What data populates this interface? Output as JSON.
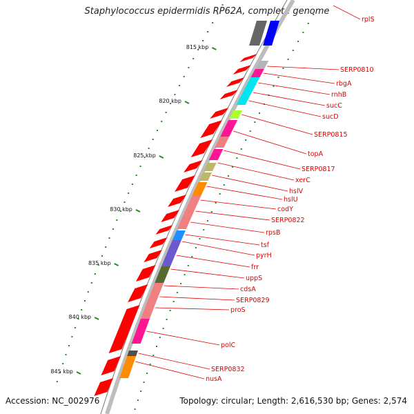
{
  "title": "Staphylococcus epidermidis RP62A, complete genome",
  "accession": "Accession: NC_002976",
  "topology": "Topology: circular; Length: 2,616,530 bp; Genes: 2,574",
  "ticks": [
    "815 kbp",
    "820 kbp",
    "825 kbp",
    "830 kbp",
    "835 kbp",
    "840 kbp",
    "845 kbp"
  ],
  "genes": [
    {
      "label": "rplS",
      "color": "#c0c0c0"
    },
    {
      "label": "SERP0810",
      "color": "#b4b4b4"
    },
    {
      "label": "rbgA",
      "color": "#ff1493"
    },
    {
      "label": "rnhB",
      "color": "#00e5ee"
    },
    {
      "label": "sucC",
      "color": "#00e5ee"
    },
    {
      "label": "sucD",
      "color": "#00e5ee"
    },
    {
      "label": "SERP0815",
      "color": "#adff2f"
    },
    {
      "label": "topA",
      "color": "#ff1493"
    },
    {
      "label": "SERP0817",
      "color": "#f08080"
    },
    {
      "label": "xerC",
      "color": "#ff1493"
    },
    {
      "label": "hslV",
      "color": "#bdb76b"
    },
    {
      "label": "hslU",
      "color": "#bdb76b"
    },
    {
      "label": "codY",
      "color": "#ff8c00"
    },
    {
      "label": "SERP0822",
      "color": "#f08080"
    },
    {
      "label": "rpsB",
      "color": "#f08080"
    },
    {
      "label": "tsf",
      "color": "#f08080"
    },
    {
      "label": "pyrH",
      "color": "#1e90ff"
    },
    {
      "label": "frr",
      "color": "#6a5acd"
    },
    {
      "label": "uppS",
      "color": "#6a5acd"
    },
    {
      "label": "cdsA",
      "color": "#556b2f"
    },
    {
      "label": "SERP0829",
      "color": "#f08080"
    },
    {
      "label": "proS",
      "color": "#f08080"
    },
    {
      "label": "polC",
      "color": "#ff1493"
    },
    {
      "label": "SERP0832",
      "color": "#4f4f4f"
    },
    {
      "label": "nusA",
      "color": "#ff8c00"
    }
  ],
  "colors": {
    "forward_strand": "#ff0000",
    "backbone": "#bdbdbd",
    "tick_mark": "#228b22",
    "label_text": "#e00000"
  }
}
